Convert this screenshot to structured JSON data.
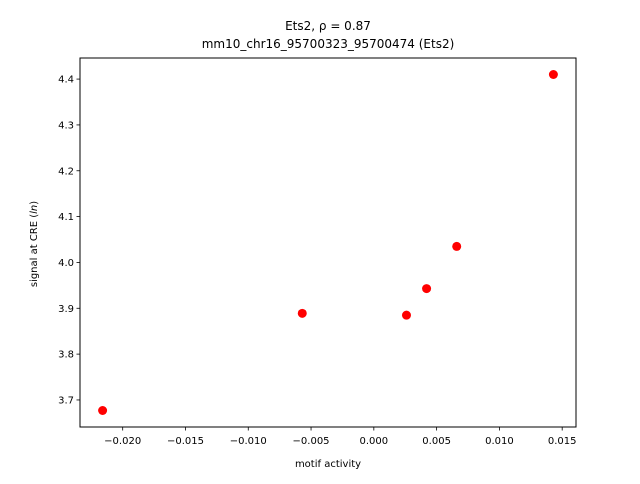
{
  "chart_data": {
    "type": "scatter",
    "title_line1": "Ets2, ρ = 0.87",
    "title_line2": "mm10_chr16_95700323_95700474 (Ets2)",
    "xlabel": "motif activity",
    "ylabel": "signal at CRE (ln)",
    "ylabel_prefix": "signal at CRE (",
    "ylabel_italic": "ln",
    "ylabel_suffix": ")",
    "xlim": [
      -0.0234,
      0.0161
    ],
    "ylim": [
      3.641,
      4.446
    ],
    "xticks": [
      -0.02,
      -0.015,
      -0.01,
      -0.005,
      0.0,
      0.005,
      0.01,
      0.015
    ],
    "xtick_labels": [
      "−0.020",
      "−0.015",
      "−0.010",
      "−0.005",
      "0.000",
      "0.005",
      "0.010",
      "0.015"
    ],
    "yticks": [
      3.7,
      3.8,
      3.9,
      4.0,
      4.1,
      4.2,
      4.3,
      4.4
    ],
    "ytick_labels": [
      "3.7",
      "3.8",
      "3.9",
      "4.0",
      "4.1",
      "4.2",
      "4.3",
      "4.4"
    ],
    "grid": false,
    "marker_color": "#ff0000",
    "points": [
      {
        "x": -0.0216,
        "y": 3.677
      },
      {
        "x": -0.0057,
        "y": 3.889
      },
      {
        "x": 0.0026,
        "y": 3.885
      },
      {
        "x": 0.0042,
        "y": 3.943
      },
      {
        "x": 0.0066,
        "y": 4.035
      },
      {
        "x": 0.0143,
        "y": 4.41
      }
    ]
  }
}
